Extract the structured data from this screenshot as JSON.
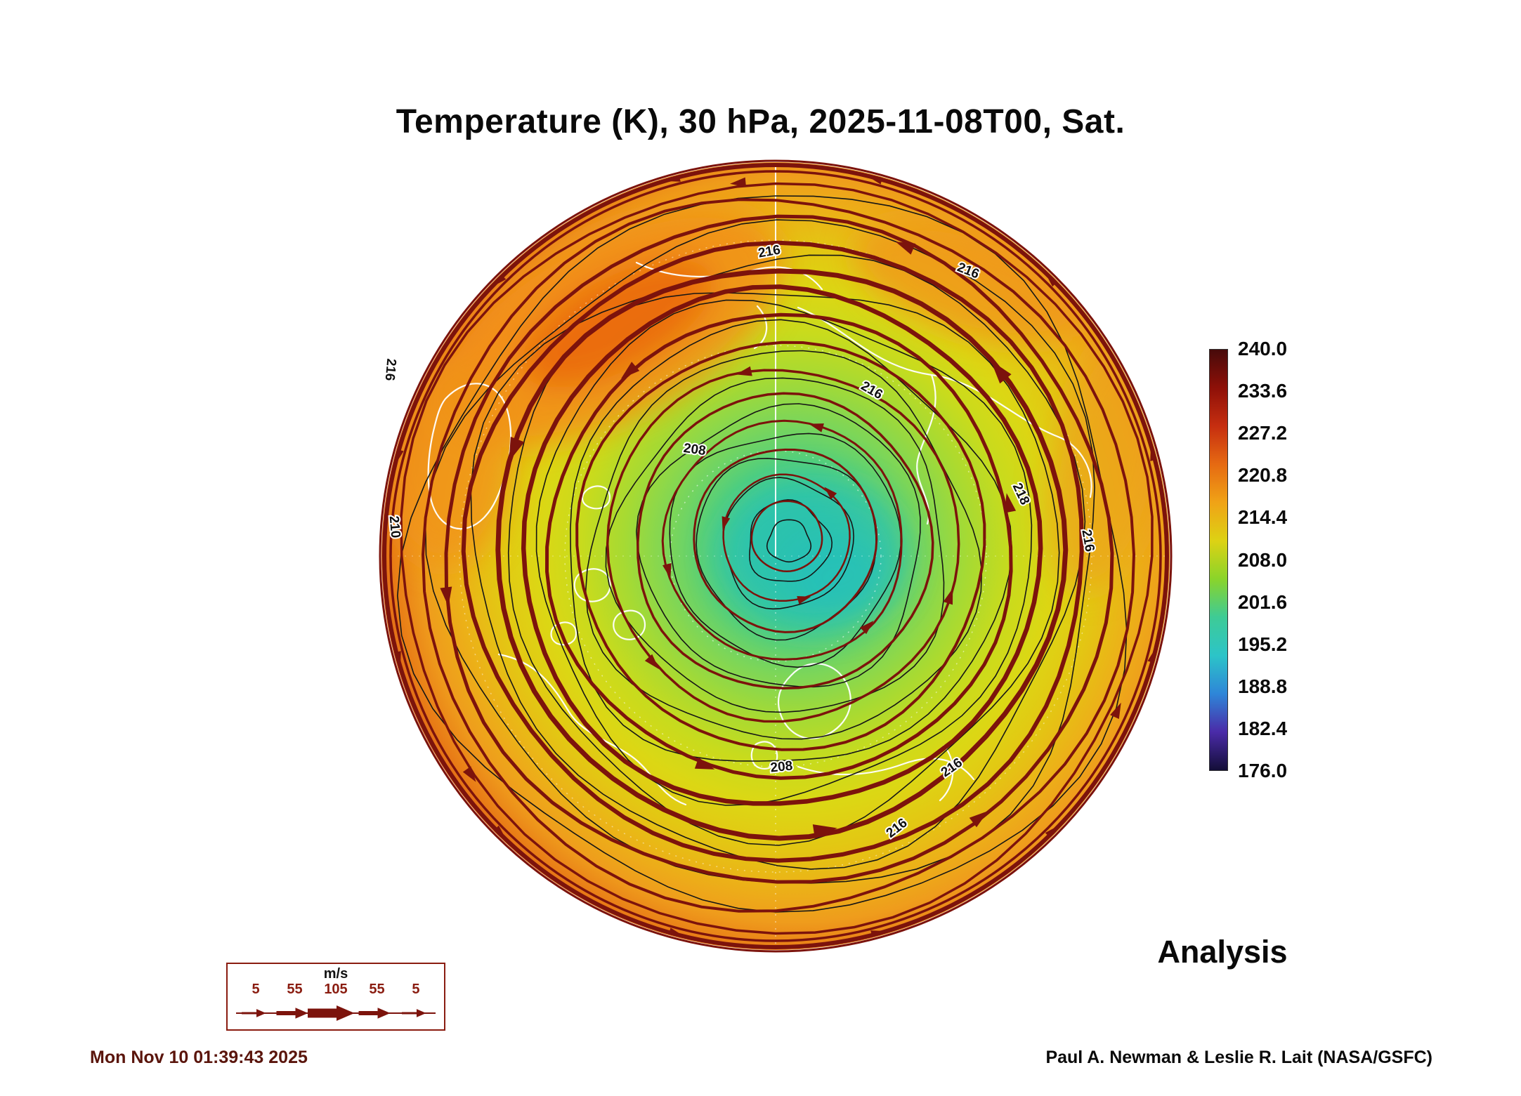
{
  "title": "Temperature (K), 30 hPa, 2025-11-08T00, Sat.",
  "footer": {
    "timestamp": "Mon Nov 10 01:39:43 2025",
    "credit": "Paul A. Newman & Leslie R. Lait (NASA/GSFC)",
    "analysis_label": "Analysis"
  },
  "colorbar": {
    "ticks": [
      "240.0",
      "233.6",
      "227.2",
      "220.8",
      "214.4",
      "208.0",
      "201.6",
      "195.2",
      "188.8",
      "182.4",
      "176.0"
    ],
    "colors": [
      "#470a0a",
      "#8e1008",
      "#c62e10",
      "#e66a12",
      "#f0a316",
      "#ddd214",
      "#8ad42a",
      "#3ecb96",
      "#2cc4c8",
      "#2e86d8",
      "#4a2ba8",
      "#140e38"
    ]
  },
  "wind_legend": {
    "units": "m/s",
    "speeds": [
      "5",
      "55",
      "105",
      "55",
      "5"
    ],
    "accent_color": "#8a1c10"
  },
  "map": {
    "contour_labels": [
      "216",
      "216",
      "216",
      "208",
      "218",
      "216",
      "210",
      "208",
      "216",
      "216",
      "216"
    ],
    "streamline_color": "#7c130c",
    "contour_color": "#161616",
    "coastline_color": "#ffffff"
  },
  "chart_data": {
    "type": "heatmap",
    "title": "Temperature (K), 30 hPa, 2025-11-08T00, Sat.",
    "variable": "Temperature",
    "units": "K",
    "pressure_level": "30 hPa",
    "valid_time": "2025-11-08T00",
    "day": "Sat.",
    "product": "Analysis",
    "colorbar_ticks": [
      240.0,
      233.6,
      227.2,
      220.8,
      214.4,
      208.0,
      201.6,
      195.2,
      188.8,
      182.4,
      176.0
    ],
    "colorbar_range": [
      176.0,
      240.0
    ],
    "contour_labels_visible": [
      208,
      210,
      216,
      218
    ],
    "wind_legend": {
      "units": "m/s",
      "speeds": [
        5,
        55,
        105,
        55,
        5
      ]
    },
    "overlays": [
      "wind streamlines with arrowheads",
      "temperature contours",
      "coastlines"
    ],
    "view": "north polar circular map, cold vortex (teal ~195-205 K) right of center, warm band (orange ~220-230 K) upper left, dark red rim"
  }
}
